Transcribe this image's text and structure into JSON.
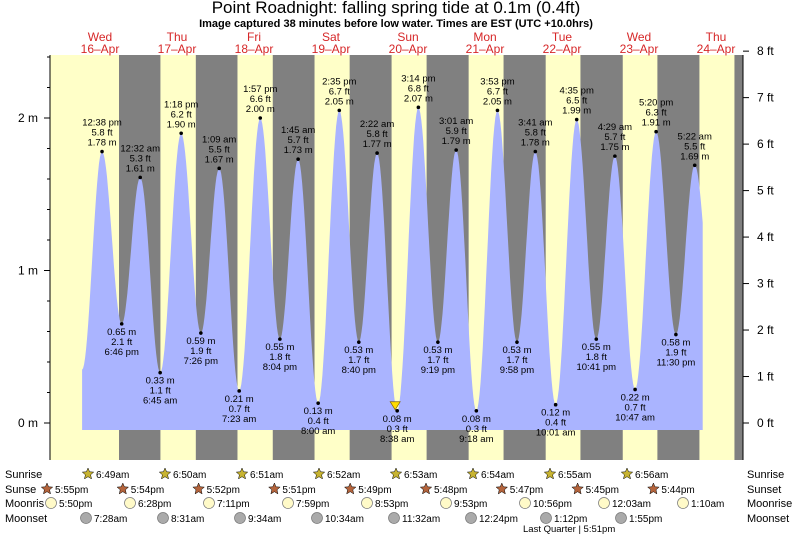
{
  "title": "Point Roadnight: falling  spring tide at 0.1m (0.4ft)",
  "subtitle": "Image captured 38 minutes before low water. Times are EST (UTC +10.0hrs)",
  "colors": {
    "night": "#808080",
    "day": "#ffffc8",
    "water": "#aab4ff",
    "text": "#000000",
    "days": "#dc1e1e",
    "sun": "#c8b432",
    "moonrise": "#fffac8",
    "moonset": "#aaaaaa"
  },
  "chart_data": {
    "type": "area",
    "x_unit": "EST (UTC +10.0hrs)",
    "y_left": {
      "label": "m",
      "ticks": [
        "0 m",
        "1 m",
        "2 m"
      ]
    },
    "y_right": {
      "label": "ft",
      "ticks": [
        "0 ft",
        "1 ft",
        "2 ft",
        "3 ft",
        "4 ft",
        "5 ft",
        "6 ft",
        "7 ft",
        "8 ft"
      ]
    },
    "days": [
      {
        "dow": "Wed",
        "date": "16–Apr"
      },
      {
        "dow": "Thu",
        "date": "17–Apr"
      },
      {
        "dow": "Fri",
        "date": "18–Apr"
      },
      {
        "dow": "Sat",
        "date": "19–Apr"
      },
      {
        "dow": "Sun",
        "date": "20–Apr"
      },
      {
        "dow": "Mon",
        "date": "21–Apr"
      },
      {
        "dow": "Tue",
        "date": "22–Apr"
      },
      {
        "dow": "Wed",
        "date": "23–Apr"
      },
      {
        "dow": "Thu",
        "date": "24–Apr"
      }
    ],
    "tides": [
      {
        "type": "high",
        "time": "12:38 pm",
        "ft": "5.8 ft",
        "m": 1.78,
        "m_label": "1.78 m"
      },
      {
        "type": "low",
        "time": "6:46 pm",
        "ft": "2.1 ft",
        "m": 0.65,
        "m_label": "0.65 m"
      },
      {
        "type": "high",
        "time": "12:32 am",
        "ft": "5.3 ft",
        "m": 1.61,
        "m_label": "1.61 m"
      },
      {
        "type": "low",
        "time": "6:45 am",
        "ft": "1.1 ft",
        "m": 0.33,
        "m_label": "0.33 m"
      },
      {
        "type": "high",
        "time": "1:18 pm",
        "ft": "6.2 ft",
        "m": 1.9,
        "m_label": "1.90 m"
      },
      {
        "type": "low",
        "time": "7:26 pm",
        "ft": "1.9 ft",
        "m": 0.59,
        "m_label": "0.59 m"
      },
      {
        "type": "high",
        "time": "1:09 am",
        "ft": "5.5 ft",
        "m": 1.67,
        "m_label": "1.67 m"
      },
      {
        "type": "low",
        "time": "7:23 am",
        "ft": "0.7 ft",
        "m": 0.21,
        "m_label": "0.21 m"
      },
      {
        "type": "high",
        "time": "1:57 pm",
        "ft": "6.6 ft",
        "m": 2.0,
        "m_label": "2.00 m"
      },
      {
        "type": "low",
        "time": "8:04 pm",
        "ft": "1.8 ft",
        "m": 0.55,
        "m_label": "0.55 m"
      },
      {
        "type": "high",
        "time": "1:45 am",
        "ft": "5.7 ft",
        "m": 1.73,
        "m_label": "1.73 m"
      },
      {
        "type": "low",
        "time": "8:00 am",
        "ft": "0.4 ft",
        "m": 0.13,
        "m_label": "0.13 m"
      },
      {
        "type": "high",
        "time": "2:35 pm",
        "ft": "6.7 ft",
        "m": 2.05,
        "m_label": "2.05 m"
      },
      {
        "type": "low",
        "time": "8:40 pm",
        "ft": "1.7 ft",
        "m": 0.53,
        "m_label": "0.53 m"
      },
      {
        "type": "high",
        "time": "2:22 am",
        "ft": "5.8 ft",
        "m": 1.77,
        "m_label": "1.77 m"
      },
      {
        "type": "low",
        "time": "8:38 am",
        "ft": "0.3 ft",
        "m": 0.08,
        "m_label": "0.08 m"
      },
      {
        "type": "high",
        "time": "3:14 pm",
        "ft": "6.8 ft",
        "m": 2.07,
        "m_label": "2.07 m"
      },
      {
        "type": "low",
        "time": "9:19 pm",
        "ft": "1.7 ft",
        "m": 0.53,
        "m_label": "0.53 m"
      },
      {
        "type": "high",
        "time": "3:01 am",
        "ft": "5.9 ft",
        "m": 1.79,
        "m_label": "1.79 m"
      },
      {
        "type": "low",
        "time": "9:18 am",
        "ft": "0.3 ft",
        "m": 0.08,
        "m_label": "0.08 m"
      },
      {
        "type": "high",
        "time": "3:53 pm",
        "ft": "6.7 ft",
        "m": 2.05,
        "m_label": "2.05 m"
      },
      {
        "type": "low",
        "time": "9:58 pm",
        "ft": "1.7 ft",
        "m": 0.53,
        "m_label": "0.53 m"
      },
      {
        "type": "high",
        "time": "3:41 am",
        "ft": "5.8 ft",
        "m": 1.78,
        "m_label": "1.78 m"
      },
      {
        "type": "low",
        "time": "10:01 am",
        "ft": "0.4 ft",
        "m": 0.12,
        "m_label": "0.12 m"
      },
      {
        "type": "high",
        "time": "4:35 pm",
        "ft": "6.5 ft",
        "m": 1.99,
        "m_label": "1.99 m"
      },
      {
        "type": "low",
        "time": "10:41 pm",
        "ft": "1.8 ft",
        "m": 0.55,
        "m_label": "0.55 m"
      },
      {
        "type": "high",
        "time": "4:29 am",
        "ft": "5.7 ft",
        "m": 1.75,
        "m_label": "1.75 m"
      },
      {
        "type": "low",
        "time": "10:47 am",
        "ft": "0.7 ft",
        "m": 0.22,
        "m_label": "0.22 m"
      },
      {
        "type": "high",
        "time": "5:20 pm",
        "ft": "6.3 ft",
        "m": 1.91,
        "m_label": "1.91 m"
      },
      {
        "type": "low",
        "time": "11:30 pm",
        "ft": "1.9 ft",
        "m": 0.58,
        "m_label": "0.58 m"
      },
      {
        "type": "high",
        "time": "5:22 am",
        "ft": "5.5 ft",
        "m": 1.69,
        "m_label": "1.69 m"
      }
    ],
    "sunrise": [
      "6:49am",
      "6:50am",
      "6:51am",
      "6:52am",
      "6:53am",
      "6:54am",
      "6:55am",
      "6:56am"
    ],
    "sunset": [
      "5:55pm",
      "5:54pm",
      "5:52pm",
      "5:51pm",
      "5:49pm",
      "5:48pm",
      "5:47pm",
      "5:45pm",
      "5:44pm"
    ],
    "moonrise": [
      "5:50pm",
      "6:28pm",
      "7:11pm",
      "7:59pm",
      "8:53pm",
      "9:53pm",
      "10:56pm",
      "12:03am",
      "1:10am"
    ],
    "moonset": [
      "7:28am",
      "8:31am",
      "9:34am",
      "10:34am",
      "11:32am",
      "12:24pm",
      "1:12pm",
      "1:55pm"
    ],
    "row_labels": {
      "sunrise": "Sunrise",
      "sunset": "Sunset",
      "moonrise": "Moonrise",
      "moonset": "Moonset"
    },
    "row_labels_left": {
      "sunrise": "Sunrise",
      "sunset": "Sunse",
      "moonrise": "Moonris",
      "moonset": "Moonset"
    },
    "moon_phase": "Last Quarter | 5:51pm",
    "current": {
      "label": "0.1m (0.4ft)",
      "m": 0.1
    }
  }
}
